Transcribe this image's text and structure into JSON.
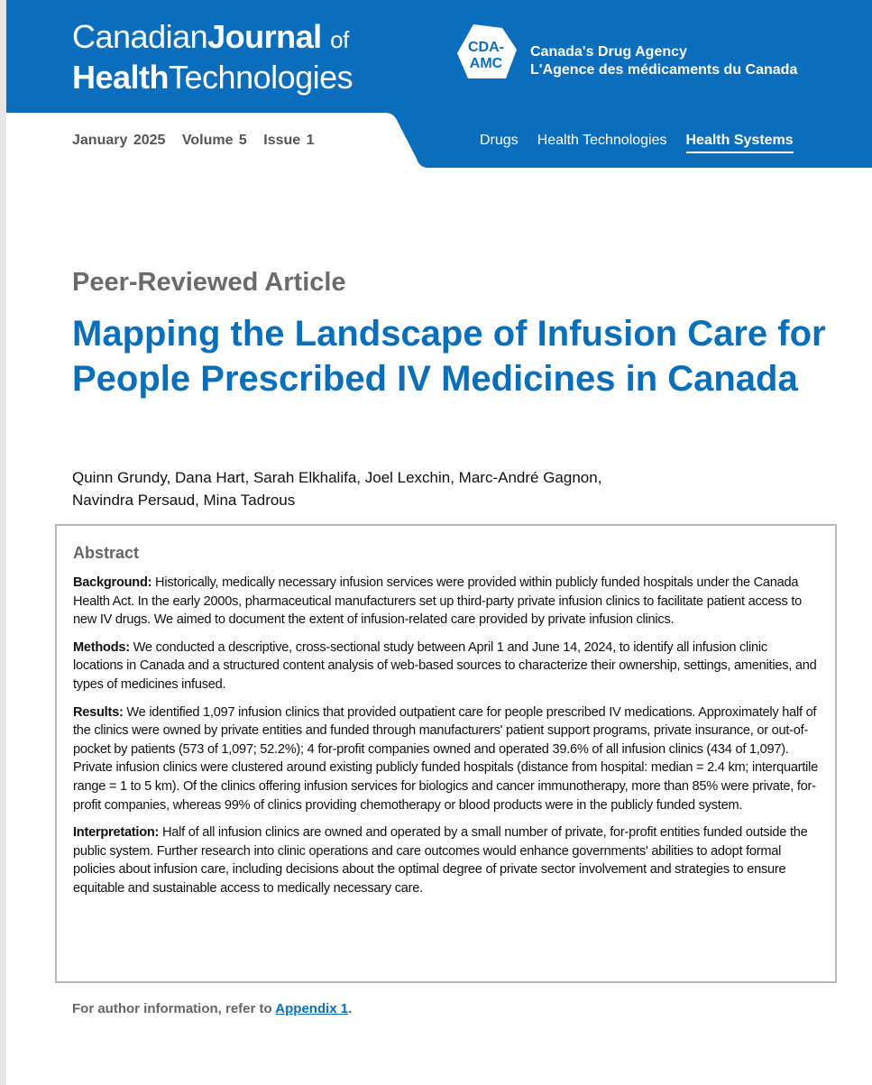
{
  "header": {
    "journal_name": {
      "part1": "Canadian",
      "part2": "Journal",
      "part3": "of",
      "part4": "Health",
      "part5": "Technologies"
    },
    "agency_logo": {
      "mark_line1": "CDA-",
      "mark_line2": "AMC",
      "name_en": "Canada's Drug Agency",
      "name_fr": "L'Agence des médicaments du Canada"
    },
    "issue": {
      "date": "January 2025",
      "volume": "Volume 5",
      "issue": "Issue 1"
    },
    "nav": [
      {
        "label": "Drugs"
      },
      {
        "label": "Health Technologies"
      },
      {
        "label": "Health Systems",
        "active": true
      }
    ],
    "brand_color": "#0a6ebd"
  },
  "article": {
    "type": "Peer-Reviewed Article",
    "title": "Mapping the Landscape of Infusion Care for People Prescribed IV Medicines in Canada",
    "authors_line1": "Quinn Grundy, Dana Hart, Sarah Elkhalifa, Joel Lexchin, Marc-André Gagnon,",
    "authors_line2": "Navindra Persaud, Mina Tadrous"
  },
  "abstract": {
    "heading": "Abstract",
    "sections": [
      {
        "label": "Background:",
        "text": " Historically, medically necessary infusion services were provided within publicly funded hospitals under the Canada Health Act. In the early 2000s, pharmaceutical manufacturers set up third-party private infusion clinics to facilitate patient access to new IV drugs. We aimed to document the extent of infusion-related care provided by private infusion clinics."
      },
      {
        "label": "Methods:",
        "text": " We conducted a descriptive, cross-sectional study between April 1 and June 14, 2024, to identify all infusion clinic locations in Canada and a structured content analysis of web-based sources to characterize their ownership, settings, amenities, and types of medicines infused."
      },
      {
        "label": "Results:",
        "text": " We identified 1,097 infusion clinics that provided outpatient care for people prescribed IV medications. Approximately half of the clinics were owned by private entities and funded through manufacturers' patient support programs, private insurance, or out-of-pocket by patients (573 of 1,097; 52.2%); 4 for-profit companies owned and operated 39.6% of all infusion clinics (434 of 1,097). Private infusion clinics were clustered around existing publicly funded hospitals (distance from hospital: median = 2.4 km; interquartile range = 1 to 5 km). Of the clinics offering infusion services for biologics and cancer immunotherapy, more than 85% were private, for-profit companies, whereas 99% of clinics providing chemotherapy or blood products were in the publicly funded system."
      },
      {
        "label": "Interpretation:",
        "text": " Half of all infusion clinics are owned and operated by a small number of private, for-profit entities funded outside the public system. Further research into clinic operations and care outcomes would enhance governments' abilities to adopt formal policies about infusion care, including decisions about the optimal degree of private sector involvement and strategies to ensure equitable and sustainable access to medically necessary care."
      }
    ]
  },
  "footer": {
    "text": "For author information, refer to ",
    "link": "Appendix 1",
    "end": "."
  }
}
